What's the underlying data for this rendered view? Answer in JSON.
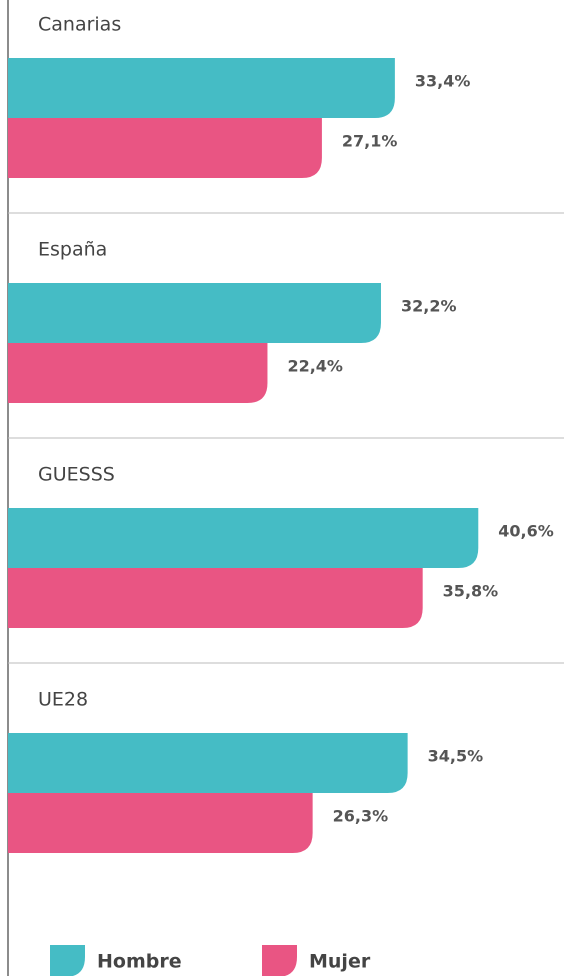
{
  "chart_data": {
    "type": "bar",
    "orientation": "horizontal",
    "categories": [
      "Canarias",
      "España",
      "GUESSS",
      "UE28"
    ],
    "series": [
      {
        "name": "Hombre",
        "color": "#45bcc5",
        "values": [
          33.4,
          32.2,
          40.6,
          34.5
        ],
        "value_labels": [
          "33,4%",
          "32,2%",
          "40,6%",
          "34,5%"
        ]
      },
      {
        "name": "Mujer",
        "color": "#e95583",
        "values": [
          27.1,
          22.4,
          35.8,
          26.3
        ],
        "value_labels": [
          "27,1%",
          "22,4%",
          "35,8%",
          "26,3%"
        ]
      }
    ],
    "xlim": [
      0,
      48
    ],
    "legend": "bottom"
  }
}
